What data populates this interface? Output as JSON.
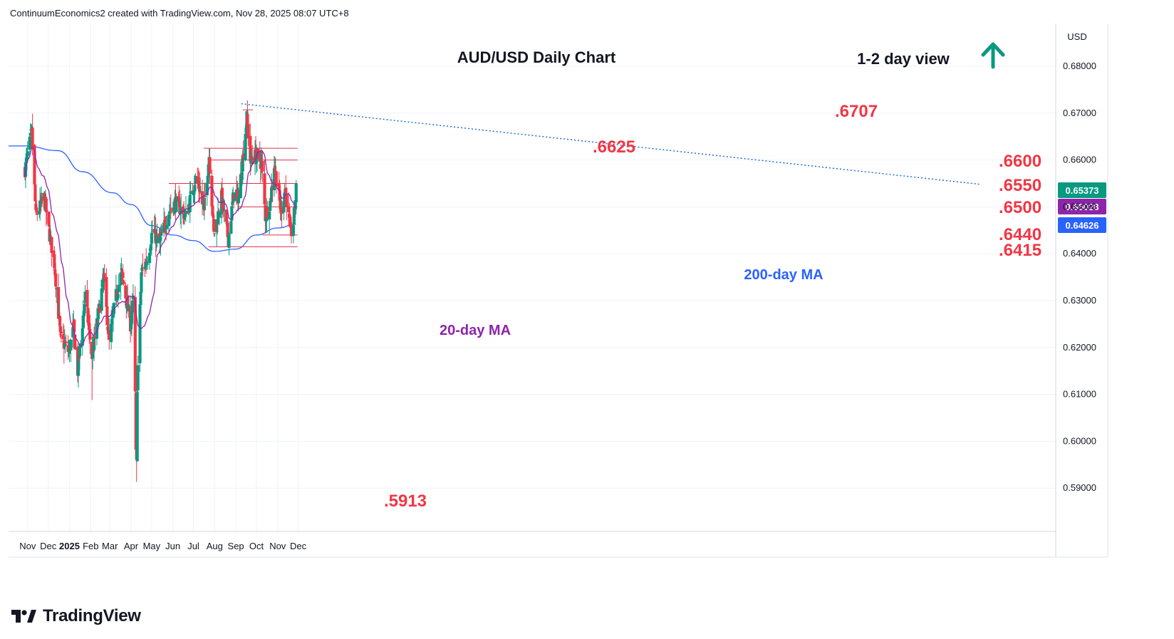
{
  "header": {
    "attribution": "ContinuumEconomics2 created with TradingView.com, Nov 28, 2025 08:07 UTC+8"
  },
  "footer": {
    "brand": "TradingView"
  },
  "colors": {
    "up": "#089981",
    "down": "#f23645",
    "ma20": "#8e24aa",
    "ma200": "#2962ff",
    "annotation": "#f23645",
    "arrow": "#089981",
    "level_line": "#e0304a",
    "trendline": "#1e6fd9",
    "grid": "#f0f3fa",
    "text": "#131722"
  },
  "chart_data": {
    "type": "candlestick",
    "title": "AUD/USD Daily Chart",
    "view_label": "1-2 day view",
    "view_icon": "up-arrow-icon",
    "currency": "USD",
    "ylim": [
      0.584,
      0.69
    ],
    "y_ticks": [
      "0.68000",
      "0.67000",
      "0.66000",
      "0.65000",
      "0.64000",
      "0.63000",
      "0.62000",
      "0.61000",
      "0.60000",
      "0.59000"
    ],
    "x_ticks": [
      "Nov",
      "Dec",
      "2025",
      "Feb",
      "Mar",
      "Apr",
      "May",
      "Jun",
      "Jul",
      "Aug",
      "Sep",
      "Oct",
      "Nov",
      "Dec"
    ],
    "price_badges": [
      {
        "label": "0.65373",
        "value": 0.65373,
        "color": "#089981"
      },
      {
        "label": "0.65028",
        "value": 0.65028,
        "color": "#8e24aa"
      },
      {
        "label": "0.64626",
        "value": 0.64626,
        "color": "#2962ff"
      }
    ],
    "levels": [
      {
        "label": ".6707",
        "value": 0.6707,
        "from": "2025-09-11",
        "to": "2025-09-26"
      },
      {
        "label": ".6625",
        "value": 0.6625,
        "from": "2025-07-16",
        "to": "2025-11-30"
      },
      {
        "label": ".6600",
        "value": 0.66,
        "from": "2025-07-23",
        "to": "2025-11-30"
      },
      {
        "label": ".6550",
        "value": 0.655,
        "from": "2025-05-26",
        "to": "2025-11-30"
      },
      {
        "label": ".6500",
        "value": 0.65,
        "from": "2025-09-05",
        "to": "2025-11-30"
      },
      {
        "label": ".6440",
        "value": 0.644,
        "from": "2025-10-10",
        "to": "2025-11-30"
      },
      {
        "label": ".6415",
        "value": 0.6415,
        "from": "2025-07-23",
        "to": "2025-11-30"
      }
    ],
    "annotations": [
      {
        "label": ".5913",
        "value": 0.5913,
        "date": "2025-04-09"
      },
      {
        "label": "20-day MA",
        "series": "ma20"
      },
      {
        "label": "200-day MA",
        "series": "ma200"
      }
    ],
    "trendline": {
      "points": [
        [
          "2025-09-09",
          0.672
        ],
        [
          "2025-11-30",
          0.6548
        ]
      ]
    },
    "anchors": [
      [
        "2024-10-28",
        0.658
      ],
      [
        "2024-11-07",
        0.666
      ],
      [
        "2024-11-13",
        0.648
      ],
      [
        "2024-11-25",
        0.652
      ],
      [
        "2024-12-03",
        0.644
      ],
      [
        "2024-12-10",
        0.638
      ],
      [
        "2024-12-19",
        0.622
      ],
      [
        "2024-12-31",
        0.619
      ],
      [
        "2025-01-07",
        0.624
      ],
      [
        "2025-01-13",
        0.615
      ],
      [
        "2025-01-24",
        0.631
      ],
      [
        "2025-02-03",
        0.618
      ],
      [
        "2025-02-12",
        0.627
      ],
      [
        "2025-02-20",
        0.635
      ],
      [
        "2025-02-28",
        0.621
      ],
      [
        "2025-03-10",
        0.631
      ],
      [
        "2025-03-18",
        0.636
      ],
      [
        "2025-03-31",
        0.625
      ],
      [
        "2025-04-04",
        0.63
      ],
      [
        "2025-04-07",
        0.61
      ],
      [
        "2025-04-08",
        0.597
      ],
      [
        "2025-04-09",
        0.595
      ],
      [
        "2025-04-10",
        0.612
      ],
      [
        "2025-04-16",
        0.636
      ],
      [
        "2025-04-25",
        0.639
      ],
      [
        "2025-05-02",
        0.645
      ],
      [
        "2025-05-12",
        0.642
      ],
      [
        "2025-05-26",
        0.649
      ],
      [
        "2025-06-05",
        0.651
      ],
      [
        "2025-06-20",
        0.648
      ],
      [
        "2025-07-04",
        0.656
      ],
      [
        "2025-07-10",
        0.654
      ],
      [
        "2025-07-16",
        0.649
      ],
      [
        "2025-07-24",
        0.661
      ],
      [
        "2025-07-31",
        0.644
      ],
      [
        "2025-08-11",
        0.652
      ],
      [
        "2025-08-21",
        0.643
      ],
      [
        "2025-08-29",
        0.653
      ],
      [
        "2025-09-05",
        0.652
      ],
      [
        "2025-09-10",
        0.659
      ],
      [
        "2025-09-17",
        0.669
      ],
      [
        "2025-09-22",
        0.66
      ],
      [
        "2025-10-01",
        0.661
      ],
      [
        "2025-10-09",
        0.659
      ],
      [
        "2025-10-14",
        0.648
      ],
      [
        "2025-10-21",
        0.651
      ],
      [
        "2025-10-27",
        0.659
      ],
      [
        "2025-11-06",
        0.649
      ],
      [
        "2025-11-12",
        0.654
      ],
      [
        "2025-11-20",
        0.644
      ],
      [
        "2025-11-24",
        0.6465
      ],
      [
        "2025-11-28",
        0.6537
      ]
    ],
    "series": [
      {
        "name": "20-day MA",
        "color": "#8e24aa"
      },
      {
        "name": "200-day MA",
        "color": "#2962ff"
      }
    ],
    "ma200_anchors": [
      [
        "2024-10-28",
        0.663
      ],
      [
        "2024-12-15",
        0.662
      ],
      [
        "2025-01-20",
        0.6575
      ],
      [
        "2025-03-05",
        0.653
      ],
      [
        "2025-04-01",
        0.6505
      ],
      [
        "2025-05-01",
        0.646
      ],
      [
        "2025-06-01",
        0.644
      ],
      [
        "2025-07-01",
        0.6428
      ],
      [
        "2025-08-01",
        0.6405
      ],
      [
        "2025-09-01",
        0.641
      ],
      [
        "2025-10-01",
        0.644
      ],
      [
        "2025-11-01",
        0.6455
      ],
      [
        "2025-11-28",
        0.6463
      ]
    ]
  }
}
